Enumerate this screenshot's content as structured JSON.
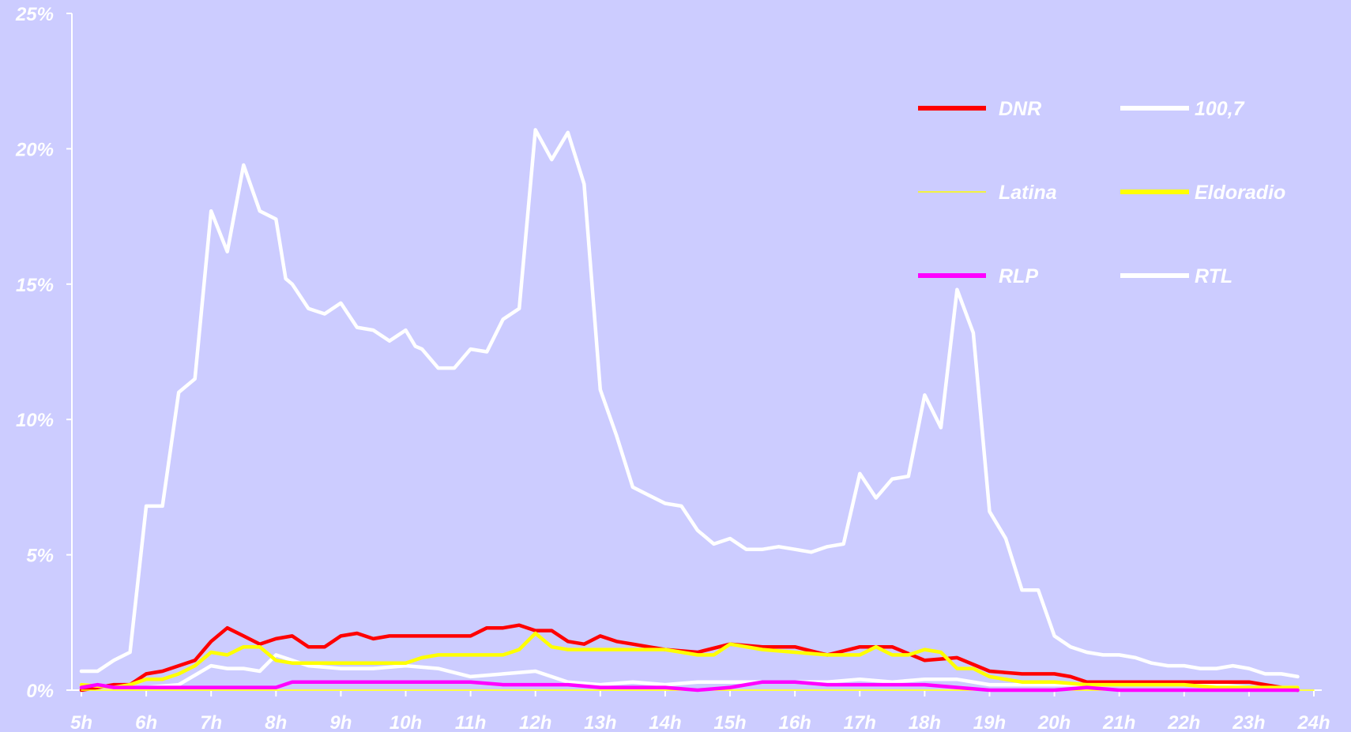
{
  "chart_data": {
    "type": "line",
    "x_ticks": [
      "5h",
      "6h",
      "7h",
      "8h",
      "9h",
      "10h",
      "11h",
      "12h",
      "13h",
      "14h",
      "15h",
      "16h",
      "17h",
      "18h",
      "19h",
      "20h",
      "21h",
      "22h",
      "23h",
      "24h"
    ],
    "y_ticks": [
      "0%",
      "5%",
      "10%",
      "15%",
      "20%",
      "25%"
    ],
    "ylim": [
      0,
      25
    ],
    "xlim": [
      5,
      24
    ],
    "grid": false,
    "legend_position": "top-right",
    "background": "#ccccff",
    "series": [
      {
        "name": "RTL",
        "color": "#ffffff",
        "x": [
          5,
          5.25,
          5.5,
          5.75,
          6,
          6.25,
          6.5,
          6.75,
          7,
          7.25,
          7.5,
          7.75,
          8,
          8.15,
          8.25,
          8.5,
          8.75,
          9,
          9.25,
          9.5,
          9.75,
          10,
          10.15,
          10.25,
          10.5,
          10.75,
          11,
          11.25,
          11.5,
          11.75,
          12,
          12.25,
          12.5,
          12.75,
          13,
          13.25,
          13.5,
          13.75,
          14,
          14.25,
          14.5,
          14.75,
          15,
          15.25,
          15.5,
          15.75,
          16,
          16.25,
          16.5,
          16.75,
          17,
          17.25,
          17.5,
          17.75,
          18,
          18.25,
          18.5,
          18.75,
          19,
          19.25,
          19.5,
          19.75,
          20,
          20.25,
          20.5,
          20.75,
          21,
          21.25,
          21.5,
          21.75,
          22,
          22.25,
          22.5,
          22.75,
          23,
          23.25,
          23.5,
          23.75
        ],
        "y": [
          0.7,
          0.7,
          1.1,
          1.4,
          6.8,
          6.8,
          11.0,
          11.5,
          17.7,
          16.2,
          19.4,
          17.7,
          17.4,
          15.2,
          15.0,
          14.1,
          13.9,
          14.3,
          13.4,
          13.3,
          12.9,
          13.3,
          12.7,
          12.6,
          11.9,
          11.9,
          12.6,
          12.5,
          13.7,
          14.1,
          20.7,
          19.6,
          20.6,
          18.7,
          11.1,
          9.4,
          7.5,
          7.2,
          6.9,
          6.8,
          5.9,
          5.4,
          5.6,
          5.2,
          5.2,
          5.3,
          5.2,
          5.1,
          5.3,
          5.4,
          8.0,
          7.1,
          7.8,
          7.9,
          10.9,
          9.7,
          14.8,
          13.2,
          6.6,
          5.6,
          3.7,
          3.7,
          2.0,
          1.6,
          1.4,
          1.3,
          1.3,
          1.2,
          1.0,
          0.9,
          0.9,
          0.8,
          0.8,
          0.9,
          0.8,
          0.6,
          0.6,
          0.5
        ]
      },
      {
        "name": "100,7",
        "color": "#ffffff",
        "x": [
          5,
          5.5,
          6,
          6.5,
          7,
          7.25,
          7.5,
          7.75,
          8,
          8.5,
          9,
          9.5,
          10,
          10.5,
          11,
          11.5,
          12,
          12.5,
          13,
          13.5,
          14,
          14.5,
          15,
          15.5,
          16,
          16.5,
          17,
          17.5,
          18,
          18.5,
          19,
          19.5,
          20,
          20.5,
          21,
          21.5,
          22,
          22.5,
          23,
          23.5,
          23.75
        ],
        "y": [
          0.2,
          0.1,
          0.1,
          0.2,
          0.9,
          0.8,
          0.8,
          0.7,
          1.3,
          0.9,
          0.8,
          0.8,
          0.9,
          0.8,
          0.5,
          0.6,
          0.7,
          0.3,
          0.2,
          0.3,
          0.2,
          0.3,
          0.3,
          0.3,
          0.3,
          0.3,
          0.4,
          0.3,
          0.4,
          0.4,
          0.2,
          0.2,
          0.2,
          0.2,
          0.2,
          0.2,
          0.2,
          0.2,
          0.1,
          0.1,
          0.1
        ]
      },
      {
        "name": "DNR",
        "color": "#ff0000",
        "x": [
          5,
          5.25,
          5.5,
          5.75,
          6,
          6.25,
          6.5,
          6.75,
          7,
          7.25,
          7.5,
          7.75,
          8,
          8.25,
          8.5,
          8.75,
          9,
          9.25,
          9.5,
          9.75,
          10,
          10.5,
          11,
          11.25,
          11.5,
          11.75,
          12,
          12.25,
          12.5,
          12.75,
          13,
          13.25,
          13.5,
          13.75,
          14,
          14.5,
          15,
          15.5,
          16,
          16.5,
          17,
          17.5,
          18,
          18.5,
          19,
          19.5,
          20,
          20.25,
          20.5,
          21,
          21.5,
          22,
          22.5,
          23,
          23.5,
          23.75
        ],
        "y": [
          0.0,
          0.1,
          0.2,
          0.2,
          0.6,
          0.7,
          0.9,
          1.1,
          1.8,
          2.3,
          2.0,
          1.7,
          1.9,
          2.0,
          1.6,
          1.6,
          2.0,
          2.1,
          1.9,
          2.0,
          2.0,
          2.0,
          2.0,
          2.3,
          2.3,
          2.4,
          2.2,
          2.2,
          1.8,
          1.7,
          2.0,
          1.8,
          1.7,
          1.6,
          1.5,
          1.4,
          1.7,
          1.6,
          1.6,
          1.3,
          1.6,
          1.6,
          1.1,
          1.2,
          0.7,
          0.6,
          0.6,
          0.5,
          0.3,
          0.3,
          0.3,
          0.3,
          0.3,
          0.3,
          0.1,
          0.0
        ]
      },
      {
        "name": "Eldoradio",
        "color": "#ffff00",
        "x": [
          5,
          5.5,
          5.75,
          6,
          6.25,
          6.5,
          6.75,
          7,
          7.25,
          7.5,
          7.75,
          8,
          8.25,
          8.5,
          9,
          9.5,
          10,
          10.25,
          10.5,
          11,
          11.5,
          11.75,
          12,
          12.25,
          12.5,
          13,
          13.5,
          14,
          14.5,
          14.75,
          15,
          15.5,
          16,
          16.5,
          17,
          17.25,
          17.5,
          17.75,
          18,
          18.25,
          18.5,
          18.75,
          19,
          19.5,
          20,
          20.5,
          21,
          21.5,
          22,
          22.5,
          23,
          23.5,
          23.75
        ],
        "y": [
          0.2,
          0.1,
          0.2,
          0.4,
          0.4,
          0.6,
          0.9,
          1.4,
          1.3,
          1.6,
          1.6,
          1.1,
          1.0,
          1.0,
          1.0,
          1.0,
          1.0,
          1.2,
          1.3,
          1.3,
          1.3,
          1.5,
          2.1,
          1.6,
          1.5,
          1.5,
          1.5,
          1.5,
          1.3,
          1.3,
          1.7,
          1.5,
          1.4,
          1.3,
          1.3,
          1.6,
          1.3,
          1.3,
          1.5,
          1.4,
          0.8,
          0.8,
          0.5,
          0.3,
          0.3,
          0.2,
          0.2,
          0.2,
          0.2,
          0.1,
          0.1,
          0.1,
          0.1
        ]
      },
      {
        "name": "Latina",
        "color": "#ffff00",
        "x": [
          5,
          10,
          15,
          20,
          24
        ],
        "y": [
          0.0,
          0.0,
          0.0,
          0.0,
          0.0
        ]
      },
      {
        "name": "RLP",
        "color": "#ff00ff",
        "x": [
          5,
          5.25,
          5.5,
          6,
          6.5,
          7,
          7.5,
          8,
          8.25,
          8.5,
          9,
          9.5,
          10,
          10.5,
          11,
          11.5,
          12,
          12.5,
          13,
          13.5,
          14,
          14.5,
          15,
          15.25,
          15.5,
          15.75,
          16,
          16.5,
          17,
          17.5,
          18,
          18.5,
          19,
          19.5,
          20,
          20.5,
          21,
          21.5,
          22,
          22.5,
          23,
          23.75
        ],
        "y": [
          0.1,
          0.2,
          0.1,
          0.1,
          0.1,
          0.1,
          0.1,
          0.1,
          0.3,
          0.3,
          0.3,
          0.3,
          0.3,
          0.3,
          0.3,
          0.2,
          0.2,
          0.2,
          0.1,
          0.1,
          0.1,
          0.0,
          0.1,
          0.2,
          0.3,
          0.3,
          0.3,
          0.2,
          0.2,
          0.2,
          0.2,
          0.1,
          0.0,
          0.0,
          0.0,
          0.1,
          0.0,
          0.0,
          0.0,
          0.0,
          0.0,
          0.0
        ]
      }
    ],
    "legend": [
      {
        "name": "DNR",
        "color": "#ff0000",
        "weight": "thick"
      },
      {
        "name": "100,7",
        "color": "#ffffff",
        "weight": "thick"
      },
      {
        "name": "Latina",
        "color": "#ffff00",
        "weight": "thin"
      },
      {
        "name": "Eldoradio",
        "color": "#ffff00",
        "weight": "thick"
      },
      {
        "name": "RLP",
        "color": "#ff00ff",
        "weight": "thick"
      },
      {
        "name": "RTL",
        "color": "#ffffff",
        "weight": "thick"
      }
    ]
  }
}
